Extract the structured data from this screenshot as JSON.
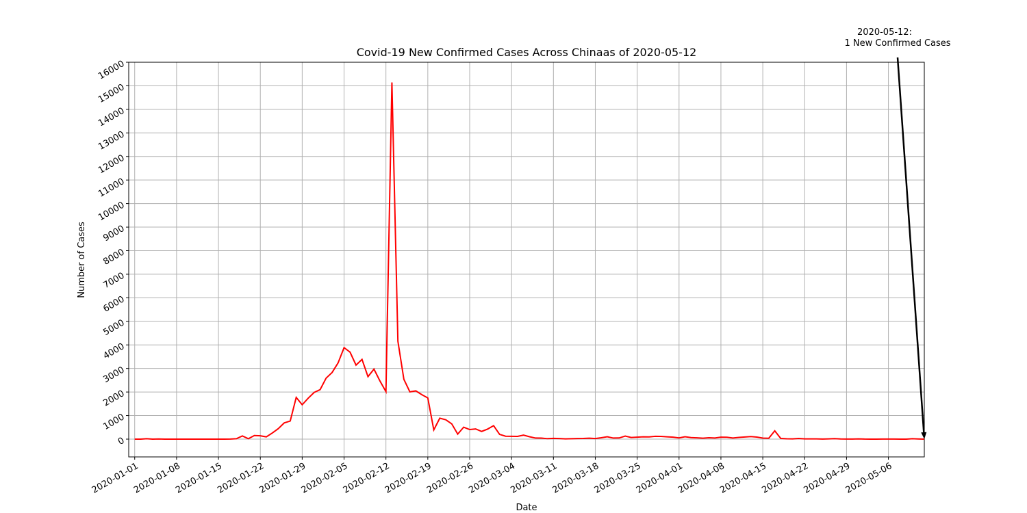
{
  "chart_data": {
    "type": "line",
    "title": "Covid-19 New Confirmed Cases Across Chinaas of 2020-05-12",
    "xlabel": "Date",
    "ylabel": "Number of Cases",
    "annotation": [
      "2020-05-12:",
      "1 New Confirmed Cases"
    ],
    "color": "#ff0000",
    "grid": true,
    "x": [
      "2020-01-01",
      "2020-01-02",
      "2020-01-03",
      "2020-01-04",
      "2020-01-05",
      "2020-01-06",
      "2020-01-07",
      "2020-01-08",
      "2020-01-09",
      "2020-01-10",
      "2020-01-11",
      "2020-01-12",
      "2020-01-13",
      "2020-01-14",
      "2020-01-15",
      "2020-01-16",
      "2020-01-17",
      "2020-01-18",
      "2020-01-19",
      "2020-01-20",
      "2020-01-21",
      "2020-01-22",
      "2020-01-23",
      "2020-01-24",
      "2020-01-25",
      "2020-01-26",
      "2020-01-27",
      "2020-01-28",
      "2020-01-29",
      "2020-01-30",
      "2020-01-31",
      "2020-02-01",
      "2020-02-02",
      "2020-02-03",
      "2020-02-04",
      "2020-02-05",
      "2020-02-06",
      "2020-02-07",
      "2020-02-08",
      "2020-02-09",
      "2020-02-10",
      "2020-02-11",
      "2020-02-12",
      "2020-02-13",
      "2020-02-14",
      "2020-02-15",
      "2020-02-16",
      "2020-02-17",
      "2020-02-18",
      "2020-02-19",
      "2020-02-20",
      "2020-02-21",
      "2020-02-22",
      "2020-02-23",
      "2020-02-24",
      "2020-02-25",
      "2020-02-26",
      "2020-02-27",
      "2020-02-28",
      "2020-02-29",
      "2020-03-01",
      "2020-03-02",
      "2020-03-03",
      "2020-03-04",
      "2020-03-05",
      "2020-03-06",
      "2020-03-07",
      "2020-03-08",
      "2020-03-09",
      "2020-03-10",
      "2020-03-11",
      "2020-03-12",
      "2020-03-13",
      "2020-03-14",
      "2020-03-15",
      "2020-03-16",
      "2020-03-17",
      "2020-03-18",
      "2020-03-19",
      "2020-03-20",
      "2020-03-21",
      "2020-03-22",
      "2020-03-23",
      "2020-03-24",
      "2020-03-25",
      "2020-03-26",
      "2020-03-27",
      "2020-03-28",
      "2020-03-29",
      "2020-03-30",
      "2020-03-31",
      "2020-04-01",
      "2020-04-02",
      "2020-04-03",
      "2020-04-04",
      "2020-04-05",
      "2020-04-06",
      "2020-04-07",
      "2020-04-08",
      "2020-04-09",
      "2020-04-10",
      "2020-04-11",
      "2020-04-12",
      "2020-04-13",
      "2020-04-14",
      "2020-04-15",
      "2020-04-16",
      "2020-04-17",
      "2020-04-18",
      "2020-04-19",
      "2020-04-20",
      "2020-04-21",
      "2020-04-22",
      "2020-04-23",
      "2020-04-24",
      "2020-04-25",
      "2020-04-26",
      "2020-04-27",
      "2020-04-28",
      "2020-04-29",
      "2020-04-30",
      "2020-05-01",
      "2020-05-02",
      "2020-05-03",
      "2020-05-04",
      "2020-05-05",
      "2020-05-06",
      "2020-05-07",
      "2020-05-08",
      "2020-05-09",
      "2020-05-10",
      "2020-05-11",
      "2020-05-12"
    ],
    "values": [
      0,
      0,
      17,
      0,
      8,
      0,
      0,
      0,
      0,
      0,
      0,
      0,
      0,
      0,
      0,
      0,
      4,
      17,
      136,
      19,
      151,
      140,
      97,
      259,
      444,
      688,
      769,
      1771,
      1459,
      1737,
      1982,
      2102,
      2590,
      2829,
      3235,
      3884,
      3694,
      3143,
      3385,
      2652,
      2973,
      2467,
      2015,
      15141,
      4156,
      2538,
      2007,
      2048,
      1888,
      1749,
      391,
      889,
      823,
      648,
      214,
      508,
      406,
      433,
      327,
      427,
      573,
      202,
      125,
      119,
      117,
      170,
      101,
      46,
      45,
      20,
      31,
      26,
      11,
      18,
      27,
      29,
      39,
      25,
      58,
      101,
      46,
      50,
      129,
      70,
      82,
      99,
      95,
      121,
      116,
      97,
      82,
      50,
      100,
      66,
      55,
      39,
      57,
      48,
      82,
      81,
      48,
      71,
      91,
      108,
      87,
      45,
      36,
      352,
      30,
      16,
      12,
      30,
      12,
      10,
      11,
      5,
      12,
      22,
      6,
      3,
      4,
      12,
      2,
      1,
      1,
      2,
      2,
      2,
      1,
      1,
      17,
      7,
      1
    ],
    "xlim": [
      "2019-12-31",
      "2020-05-12"
    ],
    "xticks": [
      "2020-01-01",
      "2020-01-08",
      "2020-01-15",
      "2020-01-22",
      "2020-01-29",
      "2020-02-05",
      "2020-02-12",
      "2020-02-19",
      "2020-02-26",
      "2020-03-04",
      "2020-03-11",
      "2020-03-18",
      "2020-03-25",
      "2020-04-01",
      "2020-04-08",
      "2020-04-15",
      "2020-04-22",
      "2020-04-29",
      "2020-05-06"
    ],
    "ylim": [
      -755,
      16000
    ],
    "yticks": [
      0,
      1000,
      2000,
      3000,
      4000,
      5000,
      6000,
      7000,
      8000,
      9000,
      10000,
      11000,
      12000,
      13000,
      14000,
      15000,
      16000
    ]
  }
}
